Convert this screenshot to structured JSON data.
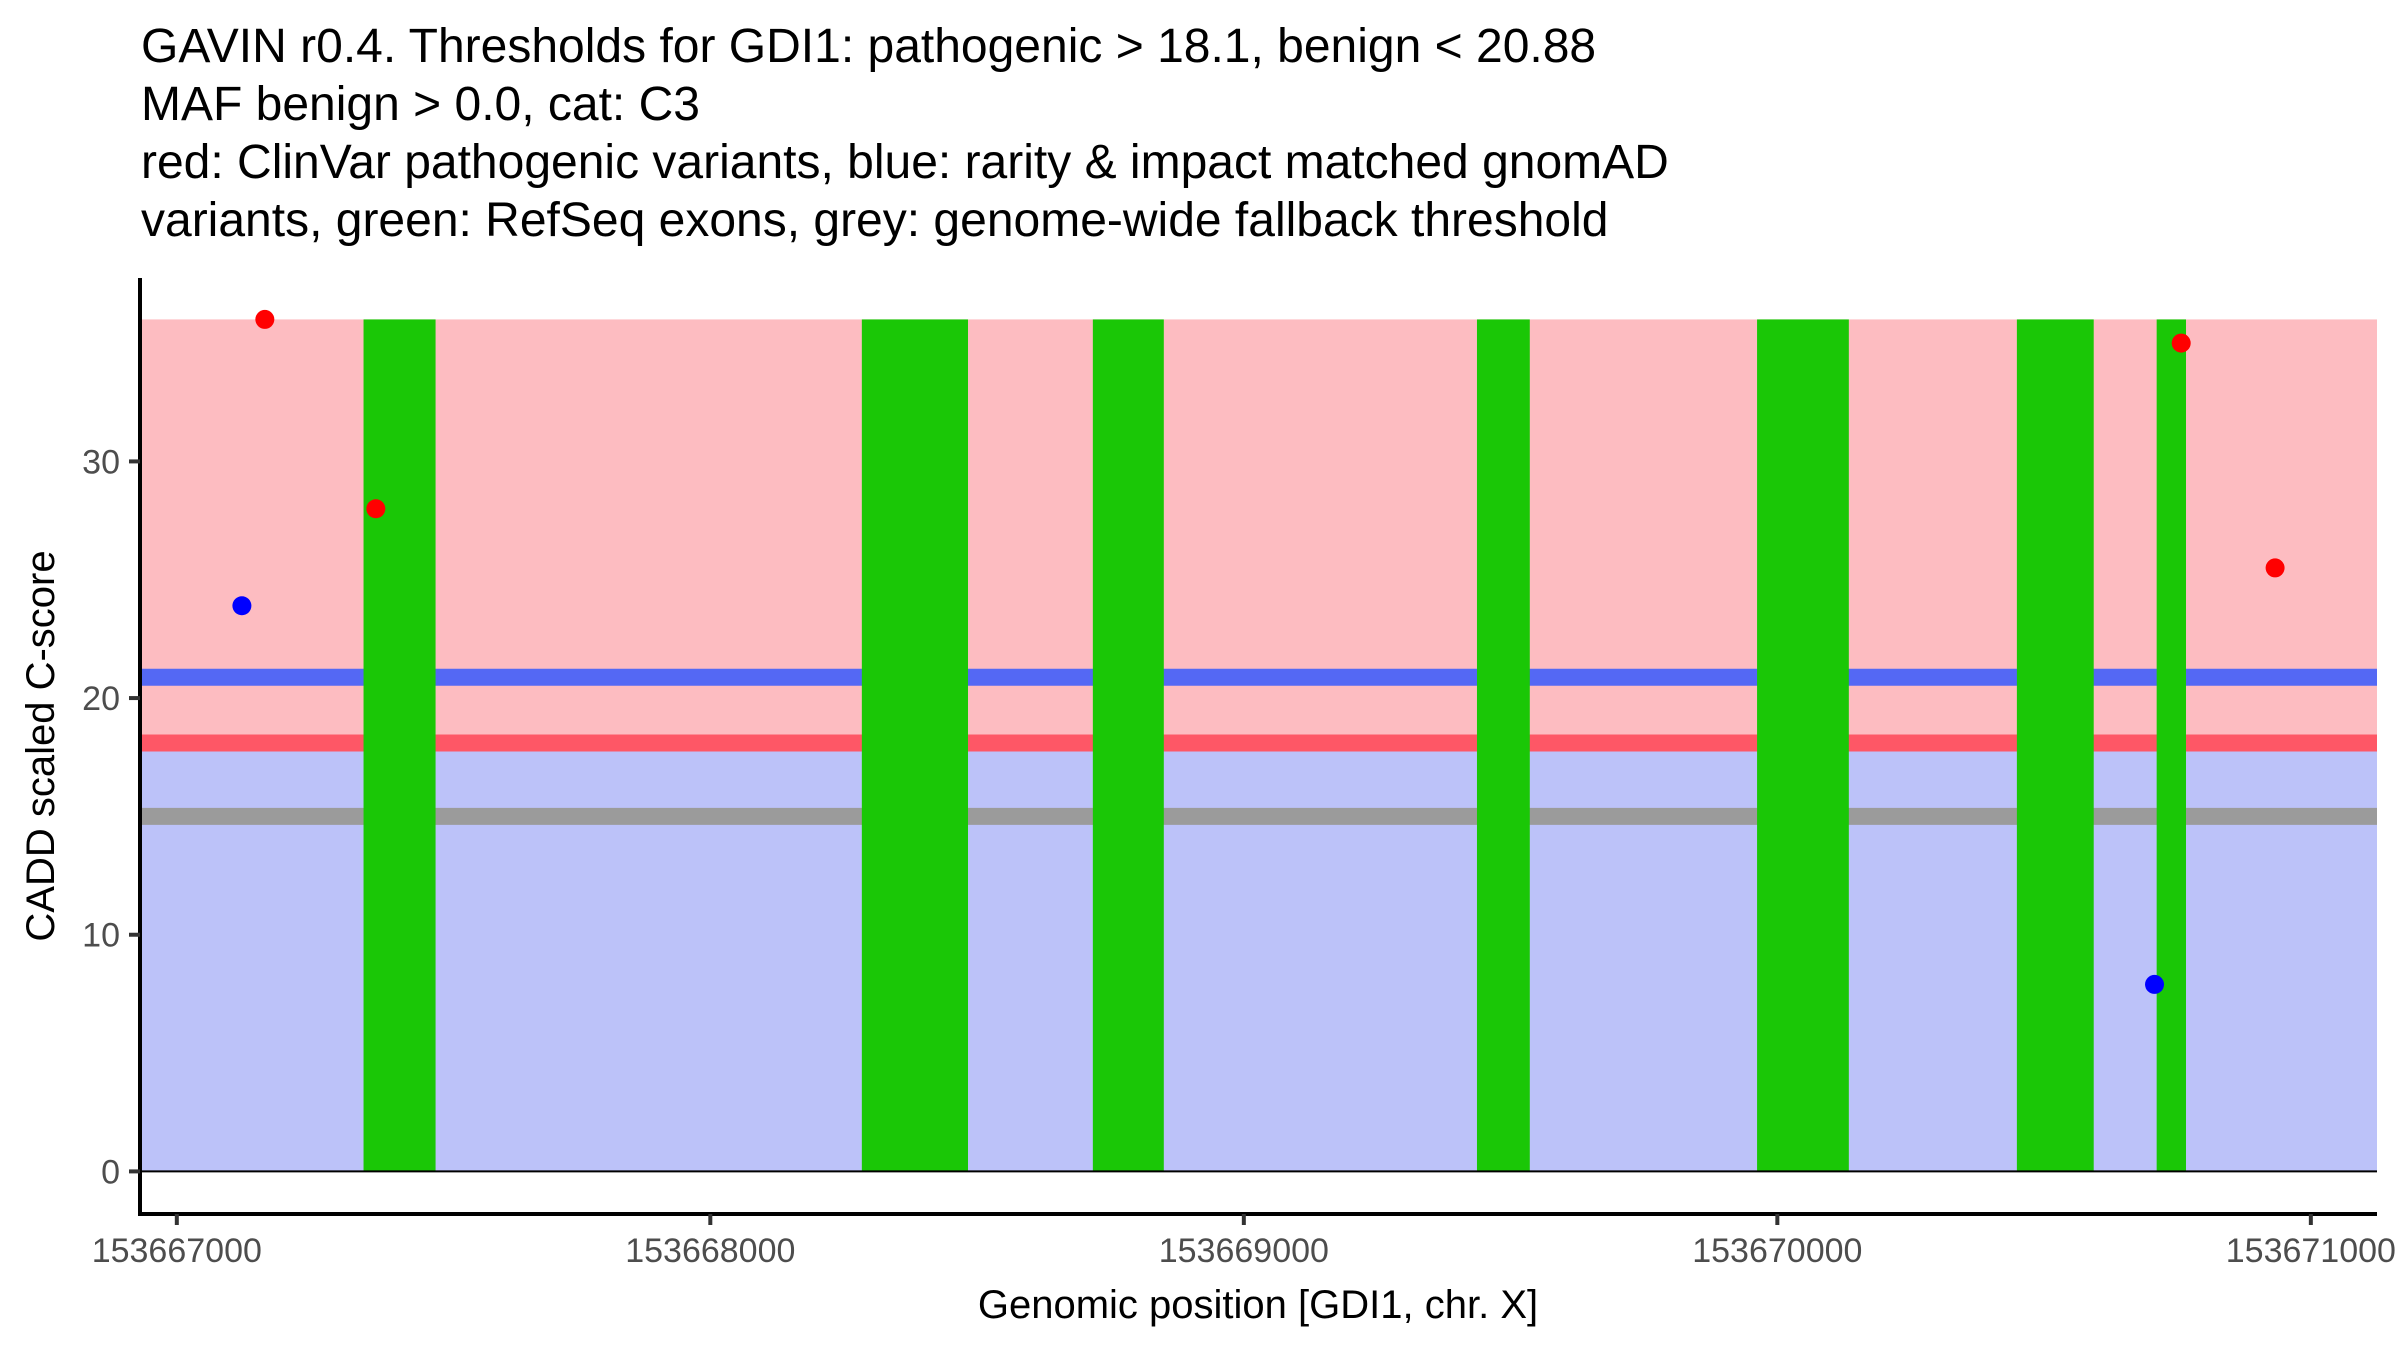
{
  "chart_data": {
    "type": "scatter",
    "title_lines": [
      "GAVIN r0.4. Thresholds for GDI1: pathogenic > 18.1, benign < 20.88",
      "MAF benign > 0.0, cat: C3",
      "red: ClinVar pathogenic variants, blue: rarity & impact matched gnomAD",
      "variants, green: RefSeq exons, grey: genome-wide fallback threshold"
    ],
    "xlabel": "Genomic position [GDI1, chr. X]",
    "ylabel": "CADD scaled C-score",
    "xlim": [
      153666931,
      153671124
    ],
    "ylim": [
      -1.8,
      37.75
    ],
    "x_ticks": [
      153667000,
      153668000,
      153669000,
      153670000,
      153671000
    ],
    "x_tick_labels": [
      "153667000",
      "153668000",
      "153669000",
      "153670000",
      "153671000"
    ],
    "y_ticks": [
      0,
      10,
      20,
      30
    ],
    "y_tick_labels": [
      "0",
      "10",
      "20",
      "30"
    ],
    "grid": false,
    "regions": {
      "pathogenic_zone": {
        "ymin": 18.1,
        "ymax": 36,
        "color": "#FDBCC1"
      },
      "benign_zone": {
        "ymin": 0,
        "ymax": 18.1,
        "color": "#BCC2F9"
      }
    },
    "exons": {
      "color": "#1AC706",
      "ymin": 0,
      "ymax": 36,
      "ranges": [
        [
          153667350,
          153667485
        ],
        [
          153668284,
          153668483
        ],
        [
          153668717,
          153668850
        ],
        [
          153669437,
          153669536
        ],
        [
          153669962,
          153670134
        ],
        [
          153670449,
          153670593
        ],
        [
          153670711,
          153670766
        ]
      ]
    },
    "thresholds": [
      {
        "name": "benign",
        "value": 20.88,
        "color": "#5468F4"
      },
      {
        "name": "pathogenic",
        "value": 18.1,
        "color": "#FE5766"
      },
      {
        "name": "genome-wide fallback",
        "value": 15,
        "color": "#9B9B9B"
      }
    ],
    "zero_line": 0,
    "series": [
      {
        "name": "ClinVar pathogenic variants",
        "color": "#FF0000",
        "points": [
          {
            "x": 153667165,
            "y": 36
          },
          {
            "x": 153667373,
            "y": 28
          },
          {
            "x": 153670757,
            "y": 35
          },
          {
            "x": 153670933,
            "y": 25.5
          }
        ]
      },
      {
        "name": "rarity & impact matched gnomAD variants",
        "color": "#0000FF",
        "points": [
          {
            "x": 153667122,
            "y": 23.9
          },
          {
            "x": 153670707,
            "y": 7.9
          }
        ]
      }
    ]
  }
}
